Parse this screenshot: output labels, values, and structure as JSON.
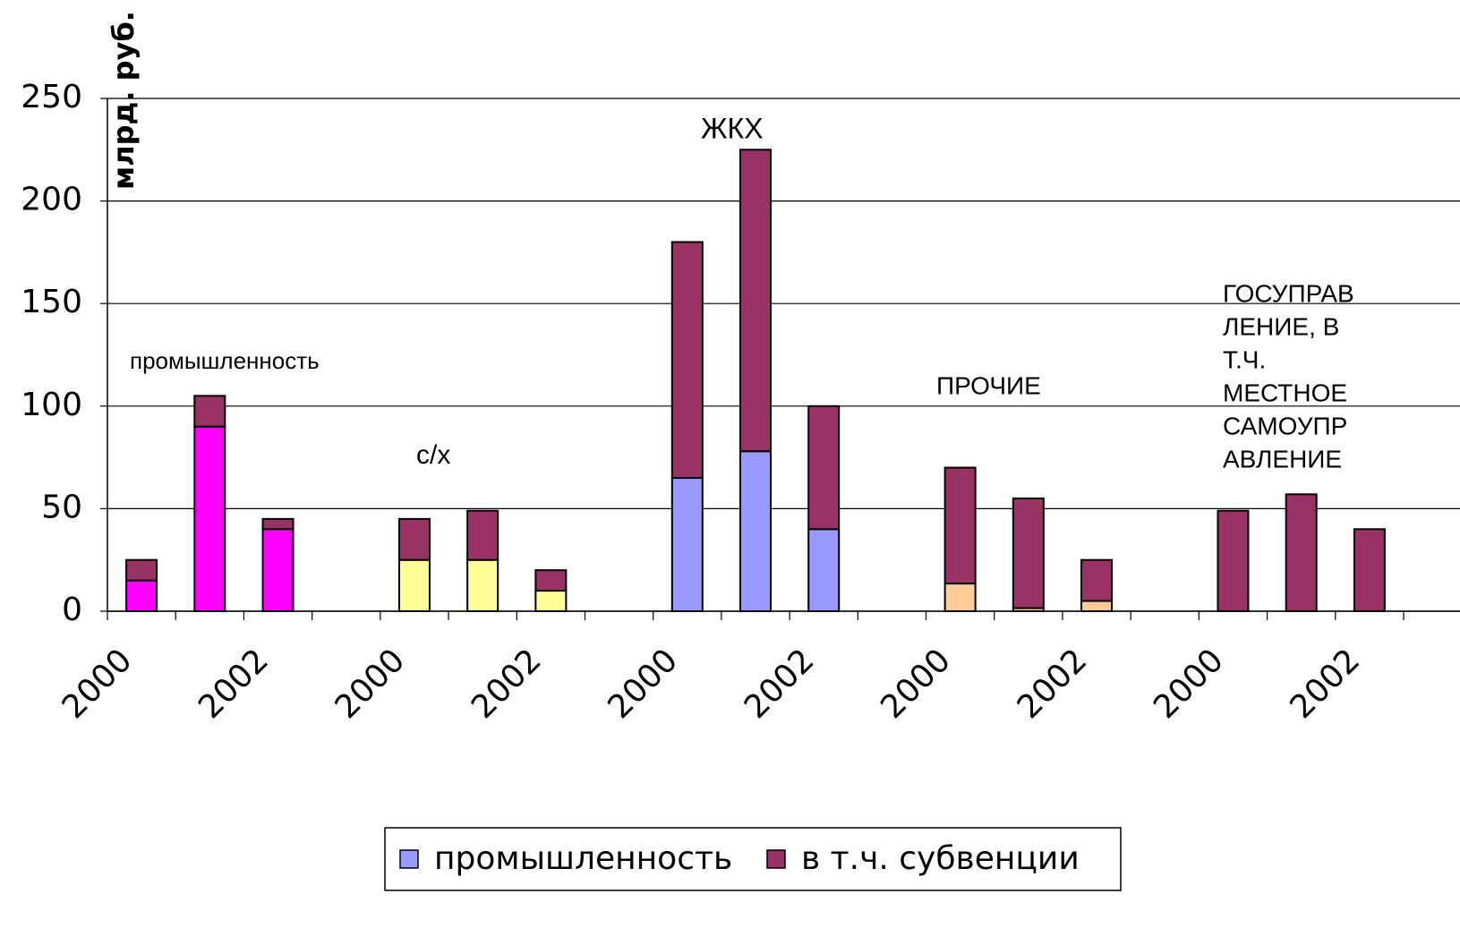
{
  "chart_data": {
    "type": "bar",
    "stacked": true,
    "y_label": "млрд. руб.",
    "categories": [
      "2000",
      null,
      "2002",
      null,
      "2000",
      null,
      "2002",
      null,
      "2000",
      null,
      "2002",
      null,
      "2000",
      null,
      "2002",
      null,
      "2000",
      null,
      "2002"
    ],
    "series": [
      {
        "name": "промышленность",
        "color": "#9999ff",
        "colors": [
          "#ff00ff",
          "#ff00ff",
          "#ff00ff",
          null,
          "#ffff99",
          "#ffff99",
          "#ffff99",
          null,
          "#9999ff",
          "#9999ff",
          "#9999ff",
          null,
          "#ffcc99",
          "#ffcc99",
          "#ffcc99",
          null,
          null,
          null,
          null
        ],
        "values": [
          15,
          90,
          40,
          null,
          25,
          25,
          10,
          null,
          65,
          78,
          40,
          null,
          13.5,
          1.5,
          5,
          null,
          null,
          null,
          null
        ]
      },
      {
        "name": "в т.ч. субвенции",
        "color": "#993366",
        "values": [
          10,
          15,
          5,
          null,
          20,
          24,
          10,
          null,
          115,
          147,
          60,
          null,
          56.5,
          53.5,
          20,
          null,
          49,
          57,
          40
        ]
      }
    ],
    "annotations": [
      {
        "text": "промышленность"
      },
      {
        "text": "с/х"
      },
      {
        "text": "ЖКХ"
      },
      {
        "text": "ПРОЧИЕ"
      },
      {
        "lines": [
          "ГОСУПРАВ",
          "ЛЕНИЕ, В",
          "Т.Ч.",
          "МЕСТНОЕ",
          "САМОУПР",
          "АВЛЕНИЕ"
        ]
      }
    ],
    "ylim": [
      0,
      250
    ],
    "yticks": [
      0,
      50,
      100,
      150,
      200,
      250
    ],
    "grid": true,
    "legend": "bottom"
  }
}
